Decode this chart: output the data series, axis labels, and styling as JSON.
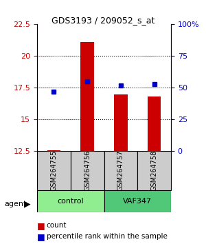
{
  "title": "GDS3193 / 209052_s_at",
  "samples": [
    "GSM264755",
    "GSM264756",
    "GSM264757",
    "GSM264758"
  ],
  "groups": [
    "control",
    "control",
    "VAF347",
    "VAF347"
  ],
  "group_labels": [
    "control",
    "VAF347"
  ],
  "group_colors": [
    "#90EE90",
    "#50C850"
  ],
  "count_values": [
    12.6,
    21.1,
    17.0,
    16.8
  ],
  "percentile_values": [
    47,
    55,
    52,
    53
  ],
  "left_ylim": [
    12.5,
    22.5
  ],
  "right_ylim": [
    0,
    100
  ],
  "left_yticks": [
    12.5,
    15,
    17.5,
    20,
    22.5
  ],
  "right_yticks": [
    0,
    25,
    50,
    75,
    100
  ],
  "right_yticklabels": [
    "0",
    "25",
    "50",
    "75",
    "100%"
  ],
  "bar_color": "#CC0000",
  "marker_color": "#0000CC",
  "bar_width": 0.4,
  "grid_color": "#000000",
  "bg_gray": "#CCCCCC",
  "agent_label": "agent",
  "legend_count": "count",
  "legend_pct": "percentile rank within the sample"
}
